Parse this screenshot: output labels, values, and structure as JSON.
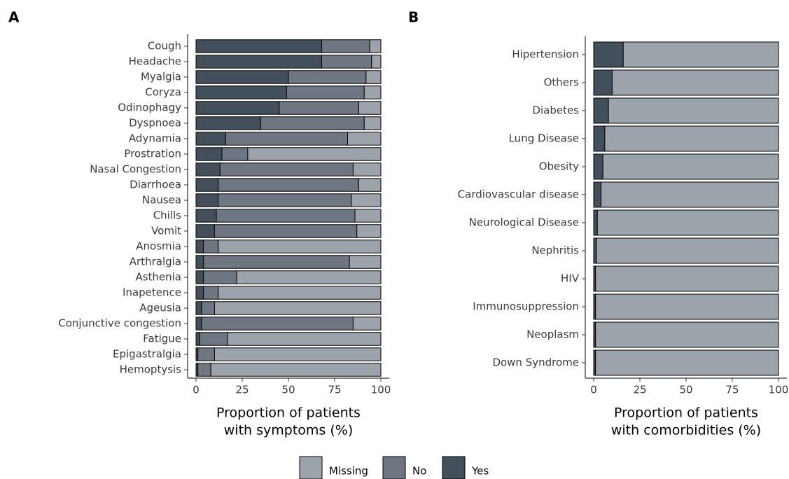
{
  "chart_data": [
    {
      "type": "stacked-bar",
      "panel": "A",
      "categories": [
        "Cough",
        "Headache",
        "Myalgia",
        "Coryza",
        "Odinophagy",
        "Dyspnoea",
        "Adynamia",
        "Prostration",
        "Nasal Congestion",
        "Diarrhoea",
        "Nausea",
        "Chills",
        "Vomit",
        "Anosmia",
        "Arthralgia",
        "Asthenia",
        "Inapetence",
        "Ageusia",
        "Conjunctive congestion",
        "Fatigue",
        "Epigastralgia",
        "Hemoptysis"
      ],
      "series": [
        {
          "name": "Yes",
          "color": "#444f5c",
          "values": [
            68,
            68,
            50,
            49,
            45,
            35,
            16,
            14,
            13,
            12,
            12,
            11,
            10,
            4,
            4,
            4,
            4,
            3,
            3,
            2,
            1,
            1
          ]
        },
        {
          "name": "No",
          "color": "#6e7781",
          "values": [
            26,
            27,
            42,
            42,
            43,
            56,
            66,
            14,
            72,
            76,
            72,
            75,
            77,
            8,
            79,
            18,
            8,
            7,
            82,
            15,
            9,
            7
          ]
        },
        {
          "name": "Missing",
          "color": "#9da3aa",
          "values": [
            6,
            5,
            8,
            9,
            12,
            9,
            18,
            72,
            15,
            12,
            16,
            14,
            13,
            88,
            17,
            78,
            88,
            90,
            15,
            83,
            90,
            92
          ]
        }
      ],
      "xlim": [
        0,
        100
      ],
      "xticks": [
        0,
        25,
        50,
        75,
        100
      ],
      "xlabel": [
        "Proportion of patients",
        "with symptoms (%)"
      ]
    },
    {
      "type": "stacked-bar",
      "panel": "B",
      "categories": [
        "Hipertension",
        "Others",
        "Diabetes",
        "Lung Disease",
        "Obesity",
        "Cardiovascular disease",
        "Neurological Disease",
        "Nephritis",
        "HIV",
        "Immunosuppression",
        "Neoplasm",
        "Down Syndrome"
      ],
      "series": [
        {
          "color": "#444f5c",
          "values": [
            16,
            10,
            8,
            6,
            5,
            4,
            2,
            1.5,
            1,
            1,
            1,
            1
          ]
        },
        {
          "color": "#9da3aa",
          "values": [
            84,
            90,
            92,
            94,
            95,
            96,
            98,
            98.5,
            99,
            99,
            99,
            99
          ]
        }
      ],
      "xlim": [
        0,
        100
      ],
      "xticks": [
        0,
        25,
        50,
        75,
        100
      ],
      "xlabel": [
        "Proportion of patients",
        "with comorbidities (%)"
      ]
    }
  ]
}
